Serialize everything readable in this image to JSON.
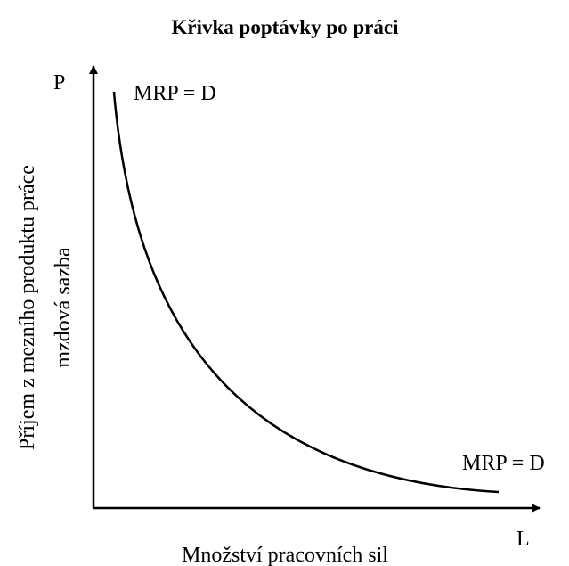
{
  "title": "Křivka poptávky po práci",
  "axes": {
    "y": {
      "symbol": "P",
      "label_lines": [
        "Příjem z mezního produktu práce",
        "mzdová sazba"
      ]
    },
    "x": {
      "symbol": "L",
      "label": "Množství pracovních sil"
    }
  },
  "curve": {
    "label_top": "MRP = D",
    "label_bottom": "MRP = D"
  }
}
